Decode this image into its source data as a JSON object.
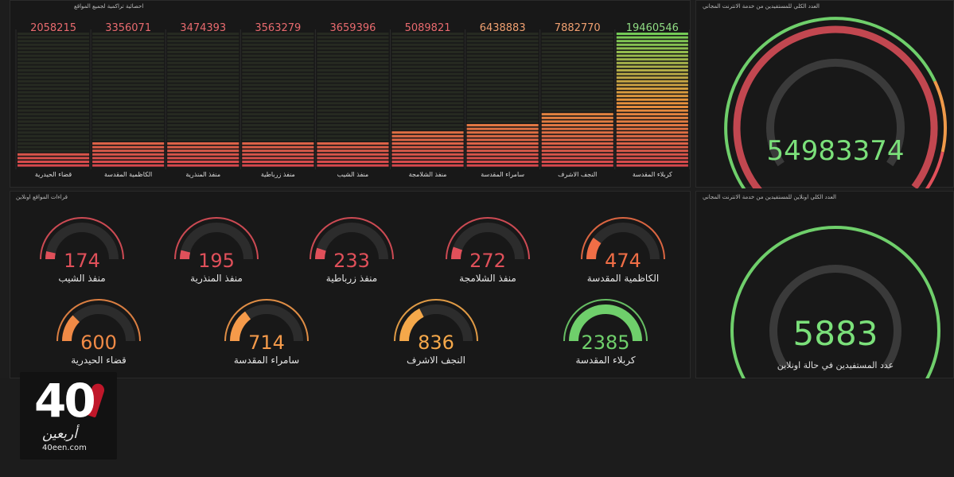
{
  "bar_panel": {
    "title": "احصائية تراكمية لجميع المواقع"
  },
  "total_panel": {
    "title": "العدد الكلي للمستفيدين من خدمة الانترنت المجاني",
    "value": "54983374",
    "gauge_fraction": 0.97
  },
  "reads_panel": {
    "title": "قراءات المواقع اونلاين"
  },
  "online_panel": {
    "title": "العدد الكلي اونلاين للمستفيدين من خدمة الانترنت المجاني",
    "value": "5883",
    "label": "عدد المستفيدين في حالة اونلاين",
    "gauge_fraction": 1.0
  },
  "chart_data": {
    "type": "bar",
    "categories": [
      "قضاء الحيدرية",
      "الكاظمية المقدسة",
      "منفذ المنذرية",
      "منفذ زرباطية",
      "منفذ الشيب",
      "منفذ الشلامجة",
      "سامراء المقدسة",
      "النجف الاشرف",
      "كربلاء المقدسة"
    ],
    "values": [
      2058215,
      3356071,
      3474393,
      3563279,
      3659396,
      5089821,
      6438883,
      7882770,
      19460546
    ],
    "value_labels": [
      "2058215",
      "3356071",
      "3474393",
      "3563279",
      "3659396",
      "5089821",
      "6438883",
      "7882770",
      "19460546"
    ],
    "ylim": [
      0,
      19460546
    ]
  },
  "gauges": [
    {
      "value": "174",
      "label": "منفذ الشيب",
      "fraction": 0.07,
      "color": "#e0505a"
    },
    {
      "value": "195",
      "label": "منفذ المنذرية",
      "fraction": 0.08,
      "color": "#e0505a"
    },
    {
      "value": "233",
      "label": "منفذ زرباطية",
      "fraction": 0.1,
      "color": "#e0505a"
    },
    {
      "value": "272",
      "label": "منفذ الشلامجة",
      "fraction": 0.11,
      "color": "#e0505a"
    },
    {
      "value": "474",
      "label": "الكاظمية المقدسة",
      "fraction": 0.2,
      "color": "#f06e46"
    },
    {
      "value": "600",
      "label": "قضاء الحيدرية",
      "fraction": 0.25,
      "color": "#f08a46"
    },
    {
      "value": "714",
      "label": "سامراء المقدسة",
      "fraction": 0.3,
      "color": "#f59a4a"
    },
    {
      "value": "836",
      "label": "النجف الاشرف",
      "fraction": 0.35,
      "color": "#f5a84a"
    },
    {
      "value": "2385",
      "label": "كربلاء المقدسة",
      "fraction": 1.0,
      "color": "#6fcf6b"
    }
  ],
  "logo": {
    "number": "40",
    "script": "أربعين",
    "url": "40een.com"
  }
}
